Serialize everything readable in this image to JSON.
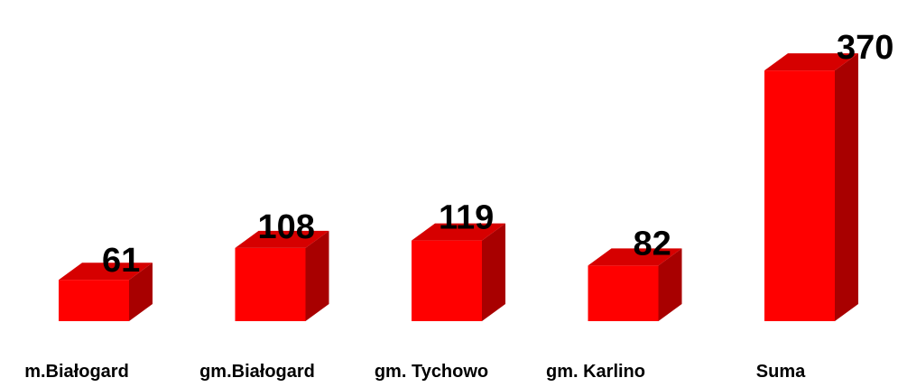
{
  "chart_data": {
    "type": "bar",
    "style": "3d-columns",
    "categories": [
      "m.Białogard",
      "gm.Białogard",
      "gm. Tychowo",
      "gm. Karlino",
      "Suma"
    ],
    "values": [
      61,
      108,
      119,
      82,
      370
    ],
    "data_labels": [
      "61",
      "108",
      "119",
      "82",
      "370"
    ],
    "title": "",
    "xlabel": "",
    "ylabel": "",
    "ylim": [
      0,
      380
    ],
    "grid": false,
    "legend": "none",
    "colors": {
      "front": "#ff0000",
      "top": "#d60000",
      "side": "#a80000",
      "text": "#000000",
      "background": "#ffffff"
    }
  }
}
